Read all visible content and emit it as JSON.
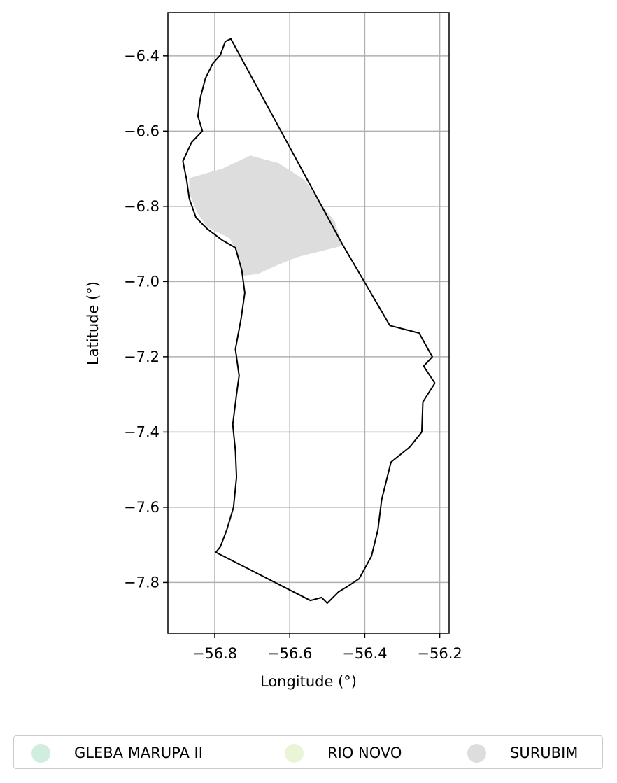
{
  "map": {
    "xlabel": "Longitude (°)",
    "ylabel": "Latitude (°)",
    "x_ticks": [
      {
        "value": -56.8,
        "label": "−56.8"
      },
      {
        "value": -56.6,
        "label": "−56.6"
      },
      {
        "value": -56.4,
        "label": "−56.4"
      },
      {
        "value": -56.2,
        "label": "−56.2"
      }
    ],
    "y_ticks": [
      {
        "value": -6.4,
        "label": "−6.4"
      },
      {
        "value": -6.6,
        "label": "−6.6"
      },
      {
        "value": -6.8,
        "label": "−6.8"
      },
      {
        "value": -7.0,
        "label": "−7.0"
      },
      {
        "value": -7.2,
        "label": "−7.2"
      },
      {
        "value": -7.4,
        "label": "−7.4"
      },
      {
        "value": -7.6,
        "label": "−7.6"
      },
      {
        "value": -7.8,
        "label": "−7.8"
      }
    ],
    "xlim": [
      -56.925,
      -56.175
    ],
    "ylim": [
      -7.935,
      -6.285
    ],
    "grid": true,
    "boundary": [
      [
        -56.757,
        -6.355
      ],
      [
        -56.772,
        -6.362
      ],
      [
        -56.785,
        -6.398
      ],
      [
        -56.805,
        -6.42
      ],
      [
        -56.825,
        -6.46
      ],
      [
        -56.838,
        -6.51
      ],
      [
        -56.845,
        -6.56
      ],
      [
        -56.833,
        -6.6
      ],
      [
        -56.862,
        -6.63
      ],
      [
        -56.885,
        -6.68
      ],
      [
        -56.875,
        -6.73
      ],
      [
        -56.868,
        -6.78
      ],
      [
        -56.85,
        -6.83
      ],
      [
        -56.82,
        -6.86
      ],
      [
        -56.78,
        -6.89
      ],
      [
        -56.745,
        -6.91
      ],
      [
        -56.728,
        -6.97
      ],
      [
        -56.72,
        -7.03
      ],
      [
        -56.73,
        -7.1
      ],
      [
        -56.745,
        -7.18
      ],
      [
        -56.735,
        -7.25
      ],
      [
        -56.742,
        -7.3
      ],
      [
        -56.752,
        -7.38
      ],
      [
        -56.745,
        -7.45
      ],
      [
        -56.742,
        -7.52
      ],
      [
        -56.75,
        -7.6
      ],
      [
        -56.768,
        -7.66
      ],
      [
        -56.785,
        -7.705
      ],
      [
        -56.797,
        -7.72
      ],
      [
        -56.545,
        -7.848
      ],
      [
        -56.515,
        -7.84
      ],
      [
        -56.5,
        -7.855
      ],
      [
        -56.47,
        -7.825
      ],
      [
        -56.445,
        -7.81
      ],
      [
        -56.415,
        -7.79
      ],
      [
        -56.382,
        -7.73
      ],
      [
        -56.365,
        -7.66
      ],
      [
        -56.355,
        -7.58
      ],
      [
        -56.33,
        -7.48
      ],
      [
        -56.28,
        -7.44
      ],
      [
        -56.248,
        -7.4
      ],
      [
        -56.245,
        -7.32
      ],
      [
        -56.213,
        -7.27
      ],
      [
        -56.243,
        -7.225
      ],
      [
        -56.22,
        -7.2
      ],
      [
        -56.255,
        -7.137
      ],
      [
        -56.333,
        -7.117
      ],
      [
        -56.46,
        -6.9
      ],
      [
        -56.757,
        -6.355
      ]
    ],
    "regions": [
      {
        "name": "SURUBIM",
        "color": "#dddddd",
        "polygon": [
          [
            -56.868,
            -6.725
          ],
          [
            -56.78,
            -6.7
          ],
          [
            -56.705,
            -6.665
          ],
          [
            -56.63,
            -6.685
          ],
          [
            -56.56,
            -6.73
          ],
          [
            -56.52,
            -6.79
          ],
          [
            -56.48,
            -6.84
          ],
          [
            -56.46,
            -6.905
          ],
          [
            -56.54,
            -6.925
          ],
          [
            -56.58,
            -6.935
          ],
          [
            -56.63,
            -6.955
          ],
          [
            -56.685,
            -6.98
          ],
          [
            -56.725,
            -6.985
          ],
          [
            -56.738,
            -6.93
          ],
          [
            -56.76,
            -6.885
          ],
          [
            -56.82,
            -6.855
          ],
          [
            -56.845,
            -6.82
          ],
          [
            -56.868,
            -6.765
          ]
        ]
      }
    ]
  },
  "legend": {
    "items": [
      {
        "label": "GLEBA MARUPA II",
        "color": "#d0ede0"
      },
      {
        "label": "RIO NOVO",
        "color": "#eaf5d7"
      },
      {
        "label": "SURUBIM",
        "color": "#dddddd"
      }
    ]
  }
}
